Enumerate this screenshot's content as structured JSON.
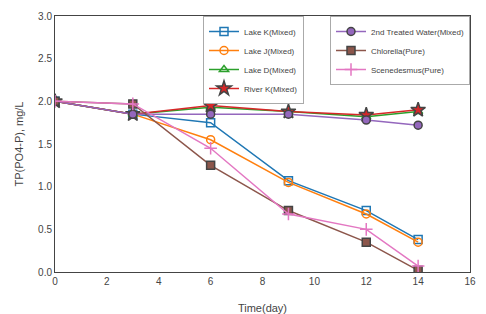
{
  "chart_data": {
    "type": "line",
    "xlabel": "Time(day)",
    "ylabel": "TP(PO4-P), mg/L",
    "x": [
      0,
      3,
      6,
      9,
      12,
      14
    ],
    "xlim": [
      0,
      16
    ],
    "ylim": [
      0,
      3
    ],
    "xticks": [
      0,
      2,
      4,
      6,
      8,
      10,
      12,
      14,
      16
    ],
    "yticks": [
      {
        "value": 0,
        "label": "0.0"
      },
      0.5,
      {
        "value": 1,
        "label": "1.0"
      },
      1.5,
      {
        "value": 2,
        "label": "2.0"
      },
      2.5,
      {
        "value": 3,
        "label": "3.0"
      }
    ],
    "grid": false,
    "legend": "upper right",
    "series": [
      {
        "name": "Lake K(Mixed)",
        "values": [
          2.0,
          1.85,
          1.75,
          1.07,
          0.72,
          0.38
        ],
        "marker": "square-open"
      },
      {
        "name": "Lake J(Mixed)",
        "values": [
          2.0,
          1.85,
          1.55,
          1.05,
          0.68,
          0.35
        ],
        "marker": "circle-open"
      },
      {
        "name": "Lake D(Mixed)",
        "values": [
          2.0,
          1.85,
          1.93,
          1.88,
          1.82,
          1.88
        ],
        "marker": "triangle-open"
      },
      {
        "name": "River K(Mixed)",
        "values": [
          2.0,
          1.85,
          1.95,
          1.88,
          1.84,
          1.9
        ],
        "marker": "star"
      },
      {
        "name": "2nd Treated Water(Mixed)",
        "values": [
          2.0,
          1.85,
          1.85,
          1.85,
          1.78,
          1.72
        ],
        "marker": "circle"
      },
      {
        "name": "Chlorella(Pure)",
        "values": [
          2.0,
          1.97,
          1.25,
          0.72,
          0.35,
          0.02
        ],
        "marker": "square"
      },
      {
        "name": "Scenedesmus(Pure)",
        "values": [
          2.0,
          1.97,
          1.45,
          0.68,
          0.5,
          0.07
        ],
        "marker": "plus"
      }
    ]
  }
}
